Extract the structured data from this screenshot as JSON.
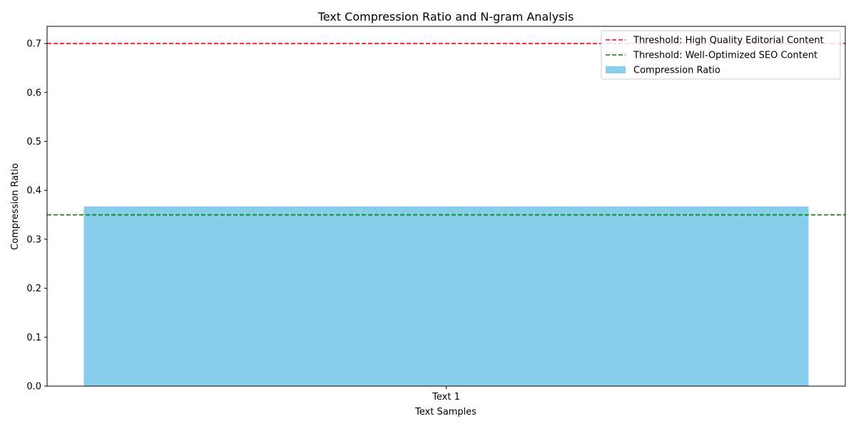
{
  "chart_data": {
    "type": "bar",
    "title": "Text Compression Ratio and N-gram Analysis",
    "xlabel": "Text Samples",
    "ylabel": "Compression Ratio",
    "categories": [
      "Text 1"
    ],
    "series": [
      {
        "name": "Compression Ratio",
        "values": [
          0.367
        ],
        "color": "#87ceeb"
      }
    ],
    "thresholds": [
      {
        "name": "Threshold: High Quality Editorial Content",
        "value": 0.7,
        "color": "#ff0000",
        "style": "dashed"
      },
      {
        "name": "Threshold: Well-Optimized SEO Content",
        "value": 0.35,
        "color": "#008000",
        "style": "dashed"
      }
    ],
    "ylim": [
      0,
      0.735
    ],
    "yticks": [
      0.0,
      0.1,
      0.2,
      0.3,
      0.4,
      0.5,
      0.6,
      0.7
    ],
    "ytick_labels": [
      "0.0",
      "0.1",
      "0.2",
      "0.3",
      "0.4",
      "0.5",
      "0.6",
      "0.7"
    ],
    "grid": false,
    "legend_position": "top-right"
  }
}
